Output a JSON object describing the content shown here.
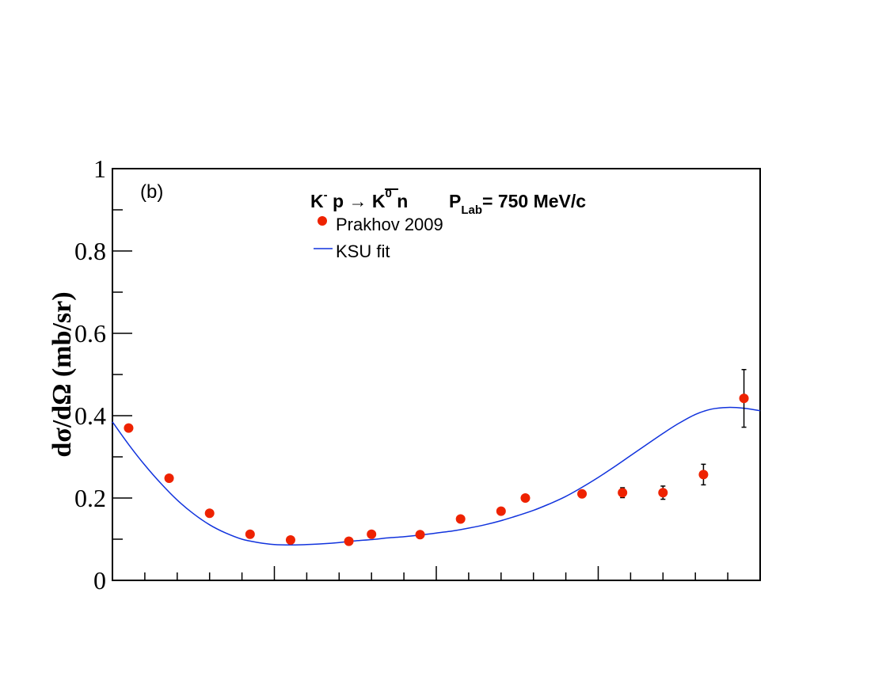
{
  "chart_data": {
    "type": "scatter",
    "panel_label": "(b)",
    "title": {
      "k": "K",
      "k_sup": "-",
      "p_arrow": " p → ",
      "kbar": "K",
      "kbar_sup": "0",
      "n": " n",
      "p": "P",
      "p_sub": "Lab",
      "p_rest": "= 750 MeV/c"
    },
    "ylabel": "dσ/dΩ (mb/sr)",
    "xlabel": "",
    "ylim": [
      0,
      1
    ],
    "xlim": [
      -1,
      1
    ],
    "y_ticks": [
      "0",
      "0.2",
      "0.4",
      "0.6",
      "0.8",
      "1"
    ],
    "legend": {
      "placement": "top-center",
      "data_label": "Prakhov 2009",
      "fit_label": "KSU fit"
    },
    "colors": {
      "data": "#ee2200",
      "fit": "#1133dd"
    },
    "series": [
      {
        "name": "Prakhov 2009",
        "kind": "points",
        "x": [
          -0.95,
          -0.825,
          -0.7,
          -0.575,
          -0.45,
          -0.27,
          -0.2,
          -0.05,
          0.075,
          0.2,
          0.275,
          0.45,
          0.575,
          0.7,
          0.825,
          0.95
        ],
        "y": [
          0.37,
          0.248,
          0.163,
          0.112,
          0.098,
          0.095,
          0.112,
          0.111,
          0.149,
          0.168,
          0.2,
          0.21,
          0.213,
          0.213,
          0.257,
          0.442
        ],
        "err": [
          0.0,
          0.0,
          0.0,
          0.0,
          0.0,
          0.0,
          0.0,
          0.0,
          0.0,
          0.0,
          0.0,
          0.0,
          0.012,
          0.016,
          0.025,
          0.07
        ]
      },
      {
        "name": "KSU fit",
        "kind": "curve",
        "x": [
          -1.0,
          -0.95,
          -0.9,
          -0.85,
          -0.8,
          -0.75,
          -0.7,
          -0.65,
          -0.6,
          -0.55,
          -0.5,
          -0.45,
          -0.4,
          -0.35,
          -0.3,
          -0.25,
          -0.2,
          -0.15,
          -0.1,
          -0.05,
          0.0,
          0.05,
          0.1,
          0.15,
          0.2,
          0.25,
          0.3,
          0.35,
          0.4,
          0.45,
          0.5,
          0.55,
          0.6,
          0.65,
          0.7,
          0.75,
          0.8,
          0.85,
          0.9,
          0.95,
          1.0
        ],
        "y": [
          0.385,
          0.33,
          0.28,
          0.235,
          0.195,
          0.162,
          0.135,
          0.115,
          0.1,
          0.092,
          0.087,
          0.086,
          0.087,
          0.089,
          0.092,
          0.096,
          0.099,
          0.103,
          0.106,
          0.11,
          0.115,
          0.12,
          0.127,
          0.135,
          0.145,
          0.157,
          0.17,
          0.186,
          0.204,
          0.226,
          0.25,
          0.276,
          0.303,
          0.33,
          0.357,
          0.382,
          0.403,
          0.416,
          0.42,
          0.418,
          0.412
        ]
      }
    ]
  }
}
